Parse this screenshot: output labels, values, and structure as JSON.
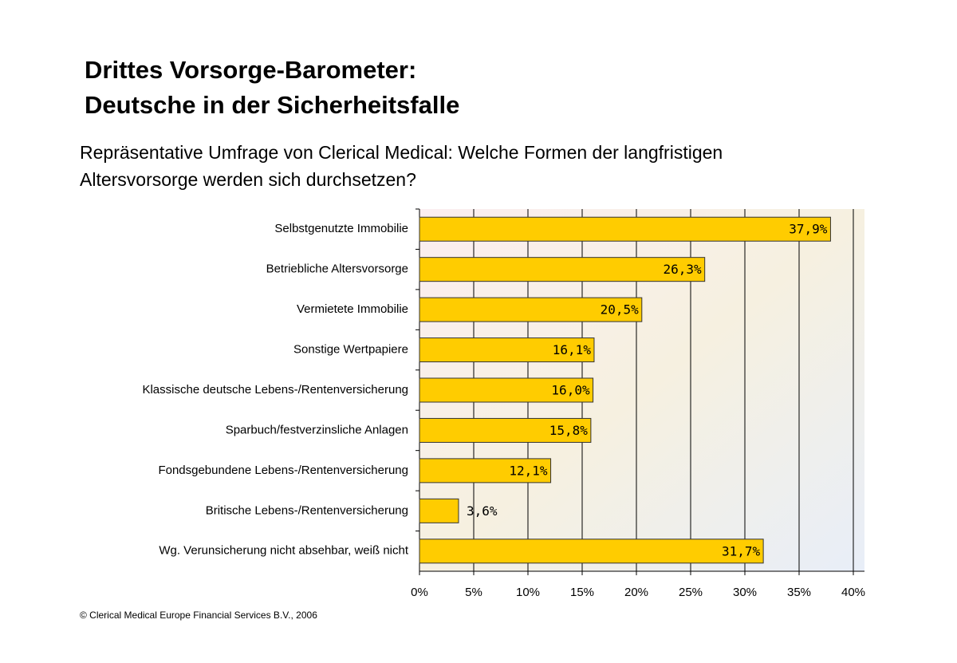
{
  "chart_data": {
    "type": "bar",
    "orientation": "horizontal",
    "title": [
      "Drittes Vorsorge-Barometer:",
      "Deutsche in der Sicherheitsfalle"
    ],
    "subtitle": [
      "Repräsentative Umfrage von Clerical Medical: Welche Formen der langfristigen",
      "Altersvorsorge werden sich durchsetzen?"
    ],
    "categories": [
      "Selbstgenutzte Immobilie",
      "Betriebliche Altersvorsorge",
      "Vermietete Immobilie",
      "Sonstige Wertpapiere",
      "Klassische deutsche Lebens-/Rentenversicherung",
      "Sparbuch/festverzinsliche Anlagen",
      "Fondsgebundene Lebens-/Rentenversicherung",
      "Britische Lebens-/Rentenversicherung",
      "Wg. Verunsicherung nicht absehbar, weiß nicht"
    ],
    "values": [
      37.9,
      26.3,
      20.5,
      16.1,
      16.0,
      15.8,
      12.1,
      3.6,
      31.7
    ],
    "value_labels": [
      "37,9%",
      "26,3%",
      "20,5%",
      "16,1%",
      "16,0%",
      "15,8%",
      "12,1%",
      "3,6%",
      "31,7%"
    ],
    "color": "#ffcc00",
    "xlim": [
      0,
      40
    ],
    "xticks": [
      {
        "value": 0,
        "label": "0%"
      },
      {
        "value": 5,
        "label": "5%"
      },
      {
        "value": 10,
        "label": "10%"
      },
      {
        "value": 15,
        "label": "15%"
      },
      {
        "value": 20,
        "label": "20%"
      },
      {
        "value": 25,
        "label": "25%"
      },
      {
        "value": 30,
        "label": "30%"
      },
      {
        "value": 35,
        "label": "35%"
      },
      {
        "value": 40,
        "label": "40%"
      }
    ],
    "grid": true,
    "source": "© Clerical Medical Europe Financial Services B.V., 2006"
  }
}
